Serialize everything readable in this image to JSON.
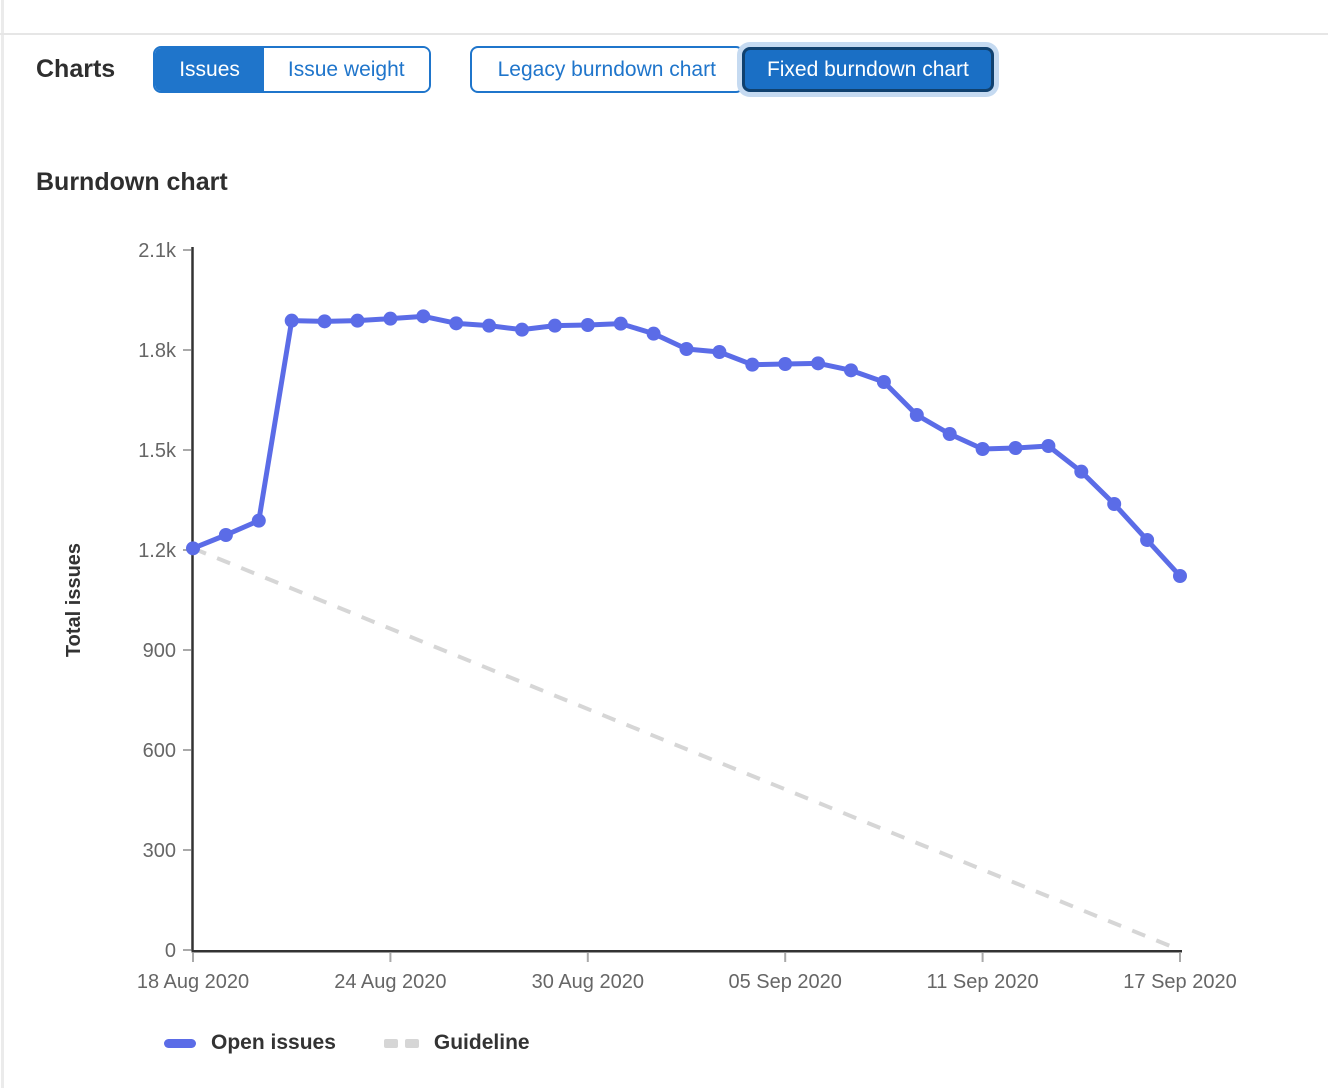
{
  "page": {
    "accent_blue": "#1f75cb",
    "focus_ring": "#c5daf1",
    "selected_border": "#10416f"
  },
  "header": {
    "title": "Charts",
    "issue_toggle": [
      {
        "label": "Issues",
        "selected": true
      },
      {
        "label": "Issue weight",
        "selected": false
      }
    ],
    "chart_toggle": [
      {
        "label": "Legacy burndown chart",
        "selected": false
      },
      {
        "label": "Fixed burndown chart",
        "selected": true
      }
    ]
  },
  "section": {
    "title": "Burndown chart"
  },
  "chart_data": {
    "type": "line",
    "title": "Burndown chart",
    "xlabel": "",
    "ylabel": "Total issues",
    "ylim": [
      0,
      2100
    ],
    "grid": false,
    "legend_position": "bottom-left",
    "axis_color": "#333333",
    "tick_mark_color": "#a9a9a9",
    "tick_label_color": "#666666",
    "yticks": {
      "values": [
        0,
        300,
        600,
        900,
        1200,
        1500,
        1800,
        2100
      ],
      "labels": [
        "0",
        "300",
        "600",
        "900",
        "1.2k",
        "1.5k",
        "1.8k",
        "2.1k"
      ]
    },
    "xticks": {
      "day_positions": [
        0,
        6,
        12,
        18,
        24,
        30
      ],
      "labels": [
        "18 Aug 2020",
        "24 Aug 2020",
        "30 Aug 2020",
        "05 Sep 2020",
        "11 Sep 2020",
        "17 Sep 2020"
      ]
    },
    "series": [
      {
        "name": "Open issues",
        "style": "solid",
        "color": "#5b6ce7",
        "values": [
          1205,
          1245,
          1288,
          1888,
          1886,
          1888,
          1894,
          1901,
          1880,
          1873,
          1861,
          1873,
          1875,
          1879,
          1849,
          1803,
          1794,
          1756,
          1758,
          1760,
          1739,
          1704,
          1605,
          1548,
          1503,
          1506,
          1512,
          1435,
          1338,
          1230,
          1122
        ]
      },
      {
        "name": "Guideline",
        "style": "dashed",
        "color": "#d6d6d6",
        "values_endpoints": [
          [
            0,
            1205
          ],
          [
            30,
            0
          ]
        ]
      }
    ]
  },
  "legend": [
    {
      "label": "Open issues"
    },
    {
      "label": "Guideline"
    }
  ]
}
